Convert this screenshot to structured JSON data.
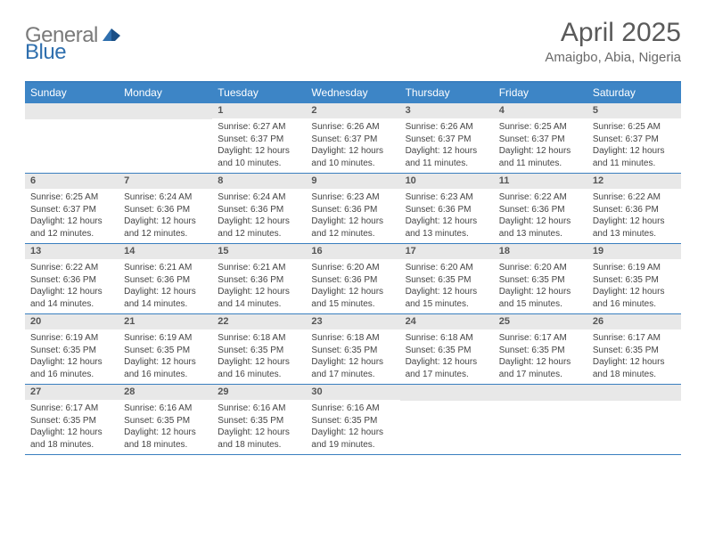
{
  "logo": {
    "word1": "General",
    "word2": "Blue"
  },
  "title": "April 2025",
  "location": "Amaigbo, Abia, Nigeria",
  "colors": {
    "header_bar": "#3d85c6",
    "border": "#3a7fbf",
    "daynum_bg": "#e8e8e8",
    "text": "#444444",
    "title_gray": "#5a5a5a"
  },
  "daysOfWeek": [
    "Sunday",
    "Monday",
    "Tuesday",
    "Wednesday",
    "Thursday",
    "Friday",
    "Saturday"
  ],
  "weeks": [
    [
      null,
      null,
      {
        "n": "1",
        "sr": "Sunrise: 6:27 AM",
        "ss": "Sunset: 6:37 PM",
        "d1": "Daylight: 12 hours",
        "d2": "and 10 minutes."
      },
      {
        "n": "2",
        "sr": "Sunrise: 6:26 AM",
        "ss": "Sunset: 6:37 PM",
        "d1": "Daylight: 12 hours",
        "d2": "and 10 minutes."
      },
      {
        "n": "3",
        "sr": "Sunrise: 6:26 AM",
        "ss": "Sunset: 6:37 PM",
        "d1": "Daylight: 12 hours",
        "d2": "and 11 minutes."
      },
      {
        "n": "4",
        "sr": "Sunrise: 6:25 AM",
        "ss": "Sunset: 6:37 PM",
        "d1": "Daylight: 12 hours",
        "d2": "and 11 minutes."
      },
      {
        "n": "5",
        "sr": "Sunrise: 6:25 AM",
        "ss": "Sunset: 6:37 PM",
        "d1": "Daylight: 12 hours",
        "d2": "and 11 minutes."
      }
    ],
    [
      {
        "n": "6",
        "sr": "Sunrise: 6:25 AM",
        "ss": "Sunset: 6:37 PM",
        "d1": "Daylight: 12 hours",
        "d2": "and 12 minutes."
      },
      {
        "n": "7",
        "sr": "Sunrise: 6:24 AM",
        "ss": "Sunset: 6:36 PM",
        "d1": "Daylight: 12 hours",
        "d2": "and 12 minutes."
      },
      {
        "n": "8",
        "sr": "Sunrise: 6:24 AM",
        "ss": "Sunset: 6:36 PM",
        "d1": "Daylight: 12 hours",
        "d2": "and 12 minutes."
      },
      {
        "n": "9",
        "sr": "Sunrise: 6:23 AM",
        "ss": "Sunset: 6:36 PM",
        "d1": "Daylight: 12 hours",
        "d2": "and 12 minutes."
      },
      {
        "n": "10",
        "sr": "Sunrise: 6:23 AM",
        "ss": "Sunset: 6:36 PM",
        "d1": "Daylight: 12 hours",
        "d2": "and 13 minutes."
      },
      {
        "n": "11",
        "sr": "Sunrise: 6:22 AM",
        "ss": "Sunset: 6:36 PM",
        "d1": "Daylight: 12 hours",
        "d2": "and 13 minutes."
      },
      {
        "n": "12",
        "sr": "Sunrise: 6:22 AM",
        "ss": "Sunset: 6:36 PM",
        "d1": "Daylight: 12 hours",
        "d2": "and 13 minutes."
      }
    ],
    [
      {
        "n": "13",
        "sr": "Sunrise: 6:22 AM",
        "ss": "Sunset: 6:36 PM",
        "d1": "Daylight: 12 hours",
        "d2": "and 14 minutes."
      },
      {
        "n": "14",
        "sr": "Sunrise: 6:21 AM",
        "ss": "Sunset: 6:36 PM",
        "d1": "Daylight: 12 hours",
        "d2": "and 14 minutes."
      },
      {
        "n": "15",
        "sr": "Sunrise: 6:21 AM",
        "ss": "Sunset: 6:36 PM",
        "d1": "Daylight: 12 hours",
        "d2": "and 14 minutes."
      },
      {
        "n": "16",
        "sr": "Sunrise: 6:20 AM",
        "ss": "Sunset: 6:36 PM",
        "d1": "Daylight: 12 hours",
        "d2": "and 15 minutes."
      },
      {
        "n": "17",
        "sr": "Sunrise: 6:20 AM",
        "ss": "Sunset: 6:35 PM",
        "d1": "Daylight: 12 hours",
        "d2": "and 15 minutes."
      },
      {
        "n": "18",
        "sr": "Sunrise: 6:20 AM",
        "ss": "Sunset: 6:35 PM",
        "d1": "Daylight: 12 hours",
        "d2": "and 15 minutes."
      },
      {
        "n": "19",
        "sr": "Sunrise: 6:19 AM",
        "ss": "Sunset: 6:35 PM",
        "d1": "Daylight: 12 hours",
        "d2": "and 16 minutes."
      }
    ],
    [
      {
        "n": "20",
        "sr": "Sunrise: 6:19 AM",
        "ss": "Sunset: 6:35 PM",
        "d1": "Daylight: 12 hours",
        "d2": "and 16 minutes."
      },
      {
        "n": "21",
        "sr": "Sunrise: 6:19 AM",
        "ss": "Sunset: 6:35 PM",
        "d1": "Daylight: 12 hours",
        "d2": "and 16 minutes."
      },
      {
        "n": "22",
        "sr": "Sunrise: 6:18 AM",
        "ss": "Sunset: 6:35 PM",
        "d1": "Daylight: 12 hours",
        "d2": "and 16 minutes."
      },
      {
        "n": "23",
        "sr": "Sunrise: 6:18 AM",
        "ss": "Sunset: 6:35 PM",
        "d1": "Daylight: 12 hours",
        "d2": "and 17 minutes."
      },
      {
        "n": "24",
        "sr": "Sunrise: 6:18 AM",
        "ss": "Sunset: 6:35 PM",
        "d1": "Daylight: 12 hours",
        "d2": "and 17 minutes."
      },
      {
        "n": "25",
        "sr": "Sunrise: 6:17 AM",
        "ss": "Sunset: 6:35 PM",
        "d1": "Daylight: 12 hours",
        "d2": "and 17 minutes."
      },
      {
        "n": "26",
        "sr": "Sunrise: 6:17 AM",
        "ss": "Sunset: 6:35 PM",
        "d1": "Daylight: 12 hours",
        "d2": "and 18 minutes."
      }
    ],
    [
      {
        "n": "27",
        "sr": "Sunrise: 6:17 AM",
        "ss": "Sunset: 6:35 PM",
        "d1": "Daylight: 12 hours",
        "d2": "and 18 minutes."
      },
      {
        "n": "28",
        "sr": "Sunrise: 6:16 AM",
        "ss": "Sunset: 6:35 PM",
        "d1": "Daylight: 12 hours",
        "d2": "and 18 minutes."
      },
      {
        "n": "29",
        "sr": "Sunrise: 6:16 AM",
        "ss": "Sunset: 6:35 PM",
        "d1": "Daylight: 12 hours",
        "d2": "and 18 minutes."
      },
      {
        "n": "30",
        "sr": "Sunrise: 6:16 AM",
        "ss": "Sunset: 6:35 PM",
        "d1": "Daylight: 12 hours",
        "d2": "and 19 minutes."
      },
      null,
      null,
      null
    ]
  ]
}
